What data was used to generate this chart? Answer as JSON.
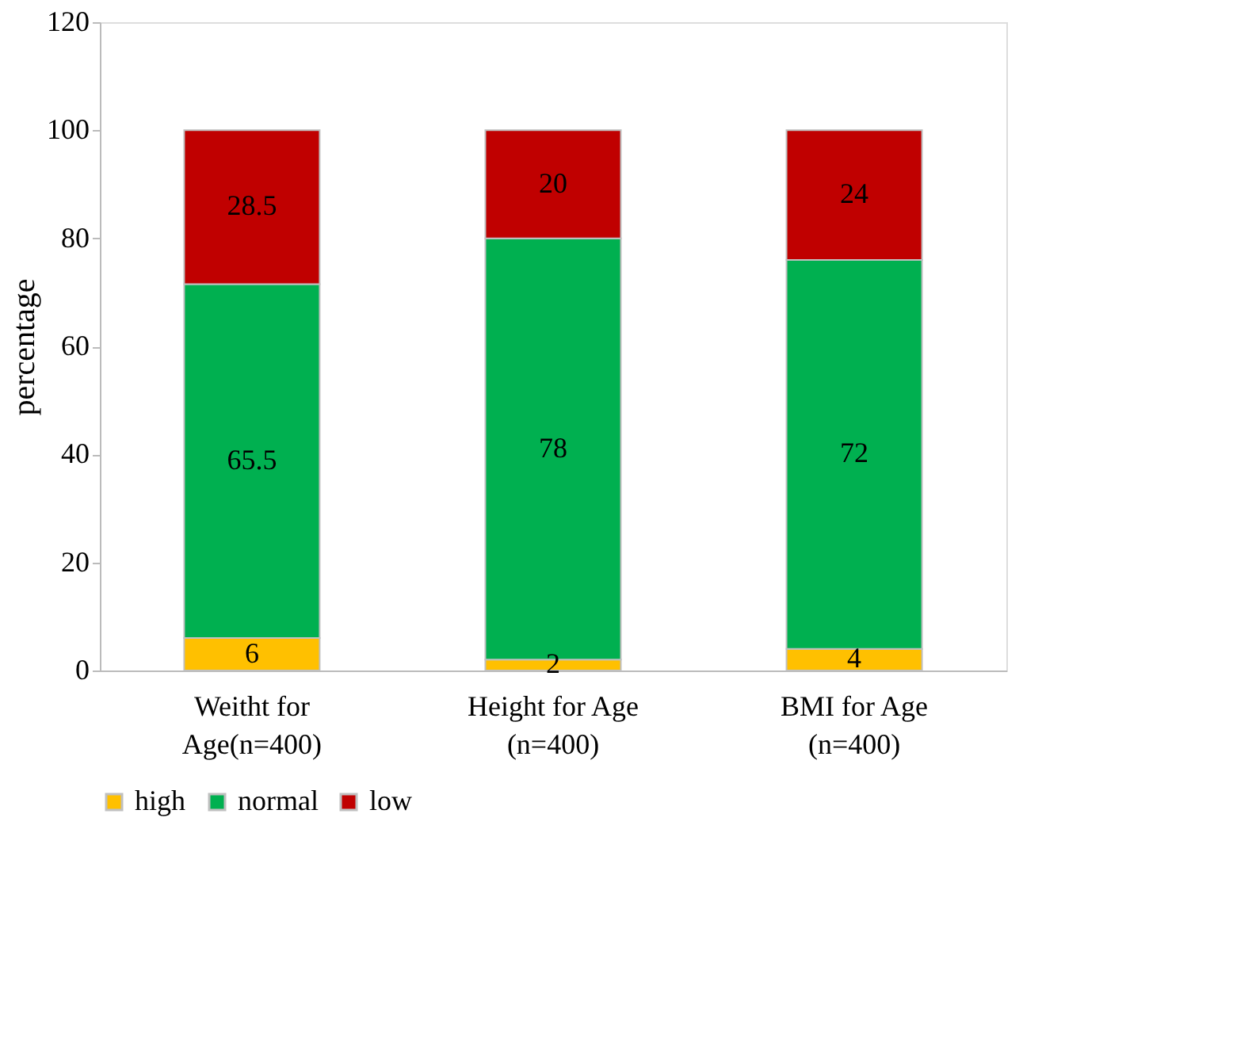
{
  "chart_data": {
    "type": "bar",
    "stacked": true,
    "ylabel": "percentage",
    "categories": [
      "Weitht for Age(n=400)",
      "Height for Age (n=400)",
      "BMI for Age (n=400)"
    ],
    "series": [
      {
        "name": "high",
        "color": "#ffc000",
        "values": [
          6,
          2,
          4
        ]
      },
      {
        "name": "normal",
        "color": "#00b050",
        "values": [
          65.5,
          78,
          72
        ]
      },
      {
        "name": "low",
        "color": "#c00000",
        "values": [
          28.5,
          20,
          24
        ]
      }
    ],
    "ylim": [
      0,
      120
    ],
    "yticks": [
      0,
      20,
      40,
      60,
      80,
      100,
      120
    ],
    "grid": false,
    "legend": "bottom",
    "data_labels": true
  }
}
